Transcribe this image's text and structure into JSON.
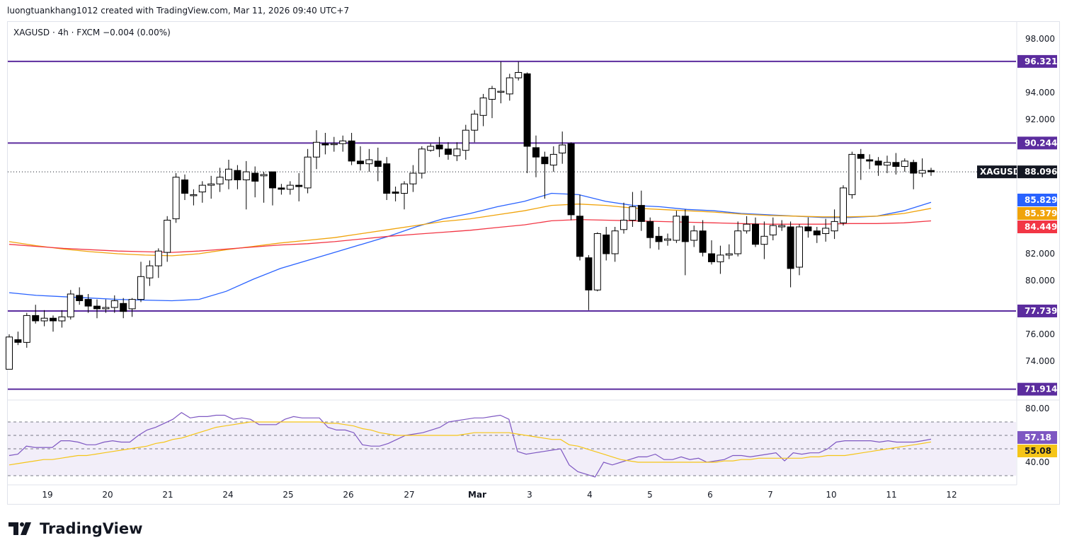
{
  "header": {
    "creator": "luongtuankhang1012 created with TradingView.com, Mar 11, 2026 09:40 UTC+7"
  },
  "legend": {
    "symbol": "XAGUSD",
    "interval": "4h",
    "exchange": "FXCM",
    "change": "−0.004 (0.00%)",
    "text": "XAGUSD · 4h · FXCM  −0.004 (0.00%)"
  },
  "footer": {
    "brand": "TradingView"
  },
  "colors": {
    "up_body": "#ffffff",
    "down_body": "#000000",
    "candle_border": "#000000",
    "level_line": "#5b2c9e",
    "ma_blue": "#2962ff",
    "ma_orange": "#f0a30a",
    "ma_red": "#f23645",
    "rsi_line": "#7e57c2",
    "rsi_ma": "#f5c518",
    "rsi_band": "#ede7f6"
  },
  "chart_data": [
    {
      "type": "candlestick",
      "symbol": "XAGUSD",
      "interval": "4h",
      "ylim": [
        72.5,
        99.0
      ],
      "y_ticks": [
        "98.000",
        "94.000",
        "92.000",
        "82.000",
        "80.000",
        "76.000",
        "74.000"
      ],
      "x_ticks": [
        "19",
        "20",
        "21",
        "24",
        "25",
        "26",
        "27",
        "Mar",
        "3",
        "4",
        "5",
        "6",
        "7",
        "10",
        "11",
        "12"
      ],
      "horizontal_levels": [
        {
          "value": 96.321,
          "label": "96.321"
        },
        {
          "value": 90.244,
          "label": "90.244"
        },
        {
          "value": 77.739,
          "label": "77.739"
        },
        {
          "value": 71.914,
          "label": "71.914"
        }
      ],
      "last_price": {
        "name": "XAGUSD",
        "value": 88.096,
        "label": "88.096"
      },
      "moving_averages": [
        {
          "label": "85.829",
          "color": "#2962ff",
          "values": [
            79.1,
            78.9,
            78.8,
            78.7,
            78.6,
            78.55,
            78.5,
            78.6,
            79.2,
            80.1,
            80.9,
            81.5,
            82.1,
            82.7,
            83.3,
            84.0,
            84.6,
            85.0,
            85.5,
            85.9,
            86.5,
            86.4,
            85.9,
            85.6,
            85.5,
            85.3,
            85.2,
            85.0,
            84.9,
            84.8,
            84.7,
            84.7,
            84.8,
            85.2,
            85.829
          ]
        },
        {
          "label": "85.379",
          "color": "#f0a30a",
          "values": [
            82.9,
            82.6,
            82.35,
            82.15,
            82.0,
            81.9,
            81.85,
            82.0,
            82.3,
            82.55,
            82.8,
            83.0,
            83.2,
            83.5,
            83.8,
            84.1,
            84.4,
            84.6,
            84.9,
            85.2,
            85.6,
            85.7,
            85.6,
            85.4,
            85.3,
            85.2,
            85.1,
            84.95,
            84.85,
            84.8,
            84.75,
            84.75,
            84.8,
            85.0,
            85.379
          ]
        },
        {
          "label": "84.449",
          "color": "#f23645",
          "values": [
            82.7,
            82.55,
            82.4,
            82.3,
            82.2,
            82.15,
            82.1,
            82.2,
            82.35,
            82.5,
            82.65,
            82.75,
            82.9,
            83.1,
            83.3,
            83.45,
            83.6,
            83.75,
            83.95,
            84.15,
            84.45,
            84.55,
            84.5,
            84.45,
            84.4,
            84.35,
            84.3,
            84.25,
            84.2,
            84.2,
            84.2,
            84.25,
            84.25,
            84.3,
            84.449
          ]
        }
      ],
      "candles": [
        [
          73.4,
          75.8,
          73.4,
          76.0
        ],
        [
          75.6,
          75.4,
          75.2,
          76.2
        ],
        [
          75.4,
          77.4,
          75.0,
          77.6
        ],
        [
          77.4,
          77.0,
          76.8,
          78.2
        ],
        [
          77.0,
          77.2,
          76.6,
          77.8
        ],
        [
          77.2,
          77.0,
          76.2,
          77.4
        ],
        [
          77.0,
          77.3,
          76.5,
          77.8
        ],
        [
          77.3,
          79.0,
          77.1,
          79.3
        ],
        [
          78.9,
          78.5,
          78.2,
          79.5
        ],
        [
          78.6,
          78.1,
          77.6,
          79.0
        ],
        [
          78.1,
          77.9,
          77.2,
          78.6
        ],
        [
          77.9,
          78.0,
          77.6,
          78.6
        ],
        [
          78.0,
          78.5,
          77.6,
          78.9
        ],
        [
          78.3,
          77.7,
          77.2,
          78.7
        ],
        [
          77.9,
          78.6,
          77.3,
          78.7
        ],
        [
          78.6,
          80.3,
          78.4,
          81.4
        ],
        [
          80.2,
          81.1,
          79.6,
          81.5
        ],
        [
          81.1,
          82.2,
          80.2,
          82.4
        ],
        [
          82.1,
          84.5,
          81.4,
          84.8
        ],
        [
          84.6,
          87.7,
          84.3,
          88.0
        ],
        [
          87.5,
          86.5,
          86.0,
          87.9
        ],
        [
          86.4,
          86.4,
          85.6,
          86.8
        ],
        [
          86.6,
          87.1,
          85.8,
          87.4
        ],
        [
          87.1,
          87.2,
          86.1,
          87.8
        ],
        [
          87.2,
          87.7,
          86.6,
          88.4
        ],
        [
          87.5,
          88.3,
          86.8,
          89.0
        ],
        [
          88.2,
          87.5,
          86.8,
          88.6
        ],
        [
          87.5,
          88.1,
          85.3,
          88.9
        ],
        [
          88.0,
          87.4,
          86.2,
          88.5
        ],
        [
          87.8,
          87.9,
          85.8,
          88.1
        ],
        [
          88.1,
          86.9,
          85.6,
          88.1
        ],
        [
          86.9,
          86.8,
          86.4,
          87.2
        ],
        [
          86.8,
          87.1,
          86.4,
          87.4
        ],
        [
          87.1,
          87.0,
          85.9,
          88.0
        ],
        [
          86.9,
          89.2,
          86.5,
          89.8
        ],
        [
          89.2,
          90.3,
          88.3,
          91.2
        ],
        [
          90.2,
          90.1,
          89.4,
          91.0
        ],
        [
          90.2,
          90.2,
          89.6,
          90.7
        ],
        [
          90.2,
          90.4,
          89.6,
          90.8
        ],
        [
          90.4,
          88.9,
          88.6,
          91.0
        ],
        [
          88.9,
          88.7,
          88.2,
          90.0
        ],
        [
          88.7,
          89.0,
          88.1,
          89.8
        ],
        [
          88.9,
          88.5,
          87.4,
          89.9
        ],
        [
          88.7,
          86.5,
          86.0,
          89.2
        ],
        [
          86.6,
          86.5,
          85.9,
          87.0
        ],
        [
          86.5,
          87.2,
          85.3,
          87.4
        ],
        [
          87.2,
          88.0,
          86.6,
          88.6
        ],
        [
          88.0,
          89.8,
          87.6,
          90.0
        ],
        [
          89.7,
          90.0,
          89.6,
          90.2
        ],
        [
          90.1,
          89.8,
          89.2,
          90.7
        ],
        [
          89.8,
          89.4,
          89.0,
          90.3
        ],
        [
          89.3,
          89.8,
          88.9,
          90.3
        ],
        [
          89.7,
          91.2,
          89.0,
          91.6
        ],
        [
          91.2,
          92.4,
          90.3,
          92.7
        ],
        [
          92.3,
          93.6,
          91.5,
          93.9
        ],
        [
          93.5,
          94.3,
          92.1,
          94.5
        ],
        [
          94.1,
          94.1,
          93.2,
          96.3
        ],
        [
          93.9,
          95.1,
          93.4,
          95.4
        ],
        [
          95.1,
          95.5,
          94.9,
          96.3
        ],
        [
          95.4,
          90.0,
          88.0,
          95.5
        ],
        [
          89.9,
          89.2,
          87.7,
          90.8
        ],
        [
          89.2,
          88.7,
          86.1,
          89.6
        ],
        [
          88.6,
          89.4,
          88.1,
          90.0
        ],
        [
          89.5,
          90.1,
          88.7,
          91.1
        ],
        [
          90.2,
          84.9,
          84.5,
          90.3
        ],
        [
          84.8,
          81.8,
          81.5,
          86.4
        ],
        [
          81.7,
          79.3,
          77.8,
          81.9
        ],
        [
          79.3,
          83.5,
          79.2,
          83.6
        ],
        [
          83.4,
          82.0,
          81.5,
          84.0
        ],
        [
          82.0,
          83.7,
          81.4,
          84.0
        ],
        [
          83.8,
          84.5,
          83.5,
          85.8
        ],
        [
          84.5,
          85.5,
          84.0,
          86.6
        ],
        [
          85.6,
          84.4,
          83.7,
          86.7
        ],
        [
          84.4,
          83.2,
          82.4,
          84.7
        ],
        [
          83.3,
          82.9,
          82.3,
          84.0
        ],
        [
          83.0,
          83.1,
          82.6,
          83.5
        ],
        [
          83.0,
          84.8,
          82.8,
          85.2
        ],
        [
          84.8,
          82.9,
          80.4,
          85.3
        ],
        [
          83.0,
          83.7,
          82.5,
          84.1
        ],
        [
          83.7,
          82.1,
          81.8,
          84.5
        ],
        [
          82.0,
          81.4,
          81.2,
          83.0
        ],
        [
          81.4,
          81.9,
          80.5,
          82.6
        ],
        [
          81.9,
          82.0,
          81.6,
          82.7
        ],
        [
          82.0,
          83.7,
          81.8,
          84.4
        ],
        [
          83.7,
          84.2,
          83.5,
          84.8
        ],
        [
          84.2,
          82.7,
          82.5,
          84.7
        ],
        [
          82.7,
          83.3,
          81.6,
          84.4
        ],
        [
          83.4,
          84.1,
          83.0,
          84.7
        ],
        [
          84.0,
          84.1,
          83.7,
          84.5
        ],
        [
          84.0,
          80.9,
          79.5,
          84.4
        ],
        [
          81.0,
          84.0,
          80.4,
          84.2
        ],
        [
          84.0,
          83.7,
          83.2,
          84.7
        ],
        [
          83.7,
          83.4,
          82.8,
          84.0
        ],
        [
          83.5,
          83.9,
          82.9,
          84.6
        ],
        [
          83.7,
          84.4,
          83.1,
          85.3
        ],
        [
          84.3,
          86.9,
          84.1,
          87.1
        ],
        [
          86.4,
          89.4,
          86.1,
          89.6
        ],
        [
          89.4,
          89.1,
          87.5,
          89.8
        ],
        [
          89.0,
          88.9,
          88.3,
          89.4
        ],
        [
          88.9,
          88.6,
          87.8,
          89.2
        ],
        [
          88.6,
          88.8,
          88.0,
          89.3
        ],
        [
          88.8,
          88.5,
          87.9,
          89.5
        ],
        [
          88.5,
          88.9,
          88.1,
          89.1
        ],
        [
          88.8,
          88.0,
          86.8,
          89.0
        ],
        [
          88.0,
          88.2,
          87.7,
          89.1
        ],
        [
          88.2,
          88.1,
          87.8,
          88.4
        ]
      ]
    },
    {
      "type": "line",
      "name": "RSI",
      "ylim": [
        25,
        85
      ],
      "y_ticks": [
        "80.00",
        "40.00"
      ],
      "levels": [
        70,
        60,
        50,
        30
      ],
      "value_labels": [
        "57.18",
        "55.08"
      ],
      "series": [
        {
          "label": "57.18",
          "color": "#7e57c2",
          "values": [
            45,
            46,
            52,
            51,
            51,
            51,
            56,
            56,
            55,
            53,
            53,
            55,
            56,
            55,
            55,
            60,
            64,
            66,
            69,
            72,
            77,
            73,
            74,
            74,
            75,
            75,
            72,
            73,
            72,
            68,
            68,
            68,
            72,
            74,
            73,
            73,
            73,
            66,
            64,
            64,
            62,
            53,
            52,
            52,
            54,
            57,
            60,
            61,
            62,
            64,
            66,
            70,
            71,
            72,
            73,
            73,
            74,
            75,
            72,
            48,
            46,
            47,
            48,
            49,
            50,
            38,
            33,
            31,
            29,
            40,
            38,
            40,
            42,
            44,
            44,
            46,
            42,
            42,
            44,
            42,
            43,
            40,
            41,
            42,
            45,
            45,
            44,
            45,
            46,
            47,
            41,
            47,
            46,
            47,
            47,
            50,
            55,
            56,
            56,
            56,
            56,
            55,
            56,
            55,
            55,
            55,
            56,
            57.18
          ]
        },
        {
          "label": "55.08",
          "color": "#f5c518",
          "values": [
            38,
            39,
            40,
            41,
            42,
            42,
            43,
            44,
            45,
            45,
            46,
            47,
            48,
            49,
            50,
            51,
            52,
            54,
            55,
            57,
            58,
            60,
            62,
            64,
            66,
            67,
            68,
            69,
            70,
            70,
            70,
            70,
            70,
            70,
            70,
            70,
            70,
            69,
            69,
            68,
            67,
            65,
            64,
            62,
            61,
            60,
            60,
            60,
            60,
            60,
            60,
            60,
            60,
            61,
            62,
            62,
            62,
            62,
            62,
            61,
            60,
            59,
            58,
            57,
            57,
            53,
            52,
            50,
            48,
            46,
            44,
            42,
            41,
            40,
            40,
            40,
            40,
            40,
            40,
            40,
            40,
            40,
            40,
            41,
            41,
            42,
            42,
            43,
            43,
            43,
            43,
            43,
            43,
            44,
            44,
            45,
            45,
            45,
            46,
            47,
            48,
            49,
            50,
            51,
            52,
            53,
            54,
            55.08
          ]
        }
      ]
    }
  ]
}
